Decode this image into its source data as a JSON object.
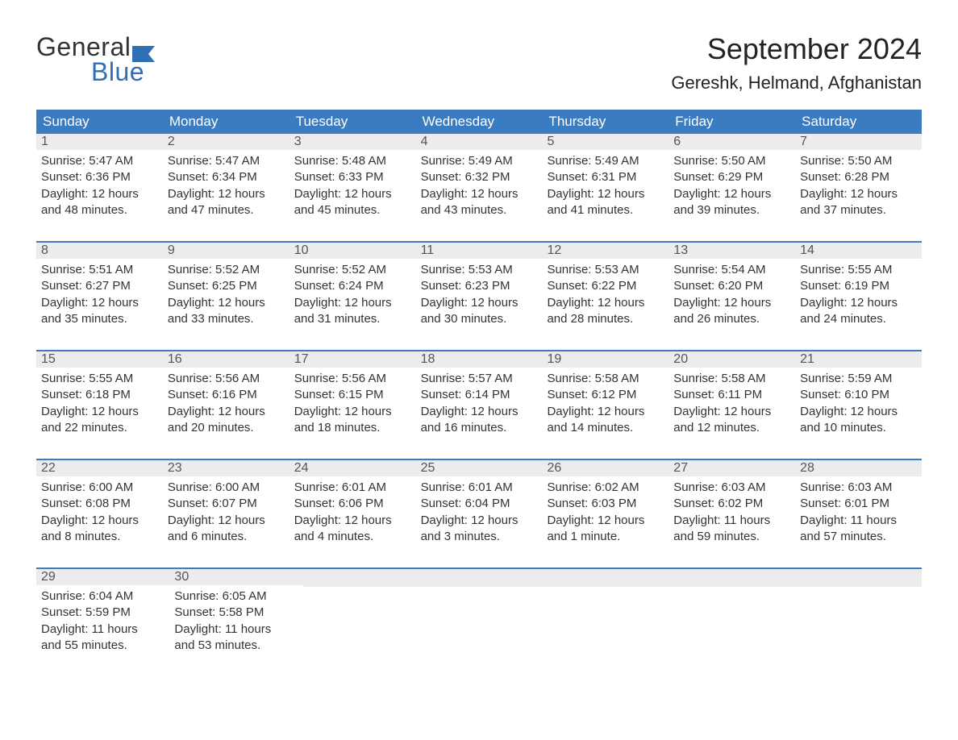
{
  "logo": {
    "top": "General",
    "bottom": "Blue",
    "flag_color": "#2e6fb5",
    "text_color": "#333"
  },
  "title": "September 2024",
  "location": "Gereshk, Helmand, Afghanistan",
  "colors": {
    "header_bg": "#3b7bbf",
    "header_text": "#ffffff",
    "daynum_bg": "#ececec",
    "daynum_text": "#555555",
    "body_text": "#333333",
    "week_border": "#3b7bbf"
  },
  "day_headers": [
    "Sunday",
    "Monday",
    "Tuesday",
    "Wednesday",
    "Thursday",
    "Friday",
    "Saturday"
  ],
  "weeks": [
    [
      {
        "num": "1",
        "sunrise": "Sunrise: 5:47 AM",
        "sunset": "Sunset: 6:36 PM",
        "d1": "Daylight: 12 hours",
        "d2": "and 48 minutes."
      },
      {
        "num": "2",
        "sunrise": "Sunrise: 5:47 AM",
        "sunset": "Sunset: 6:34 PM",
        "d1": "Daylight: 12 hours",
        "d2": "and 47 minutes."
      },
      {
        "num": "3",
        "sunrise": "Sunrise: 5:48 AM",
        "sunset": "Sunset: 6:33 PM",
        "d1": "Daylight: 12 hours",
        "d2": "and 45 minutes."
      },
      {
        "num": "4",
        "sunrise": "Sunrise: 5:49 AM",
        "sunset": "Sunset: 6:32 PM",
        "d1": "Daylight: 12 hours",
        "d2": "and 43 minutes."
      },
      {
        "num": "5",
        "sunrise": "Sunrise: 5:49 AM",
        "sunset": "Sunset: 6:31 PM",
        "d1": "Daylight: 12 hours",
        "d2": "and 41 minutes."
      },
      {
        "num": "6",
        "sunrise": "Sunrise: 5:50 AM",
        "sunset": "Sunset: 6:29 PM",
        "d1": "Daylight: 12 hours",
        "d2": "and 39 minutes."
      },
      {
        "num": "7",
        "sunrise": "Sunrise: 5:50 AM",
        "sunset": "Sunset: 6:28 PM",
        "d1": "Daylight: 12 hours",
        "d2": "and 37 minutes."
      }
    ],
    [
      {
        "num": "8",
        "sunrise": "Sunrise: 5:51 AM",
        "sunset": "Sunset: 6:27 PM",
        "d1": "Daylight: 12 hours",
        "d2": "and 35 minutes."
      },
      {
        "num": "9",
        "sunrise": "Sunrise: 5:52 AM",
        "sunset": "Sunset: 6:25 PM",
        "d1": "Daylight: 12 hours",
        "d2": "and 33 minutes."
      },
      {
        "num": "10",
        "sunrise": "Sunrise: 5:52 AM",
        "sunset": "Sunset: 6:24 PM",
        "d1": "Daylight: 12 hours",
        "d2": "and 31 minutes."
      },
      {
        "num": "11",
        "sunrise": "Sunrise: 5:53 AM",
        "sunset": "Sunset: 6:23 PM",
        "d1": "Daylight: 12 hours",
        "d2": "and 30 minutes."
      },
      {
        "num": "12",
        "sunrise": "Sunrise: 5:53 AM",
        "sunset": "Sunset: 6:22 PM",
        "d1": "Daylight: 12 hours",
        "d2": "and 28 minutes."
      },
      {
        "num": "13",
        "sunrise": "Sunrise: 5:54 AM",
        "sunset": "Sunset: 6:20 PM",
        "d1": "Daylight: 12 hours",
        "d2": "and 26 minutes."
      },
      {
        "num": "14",
        "sunrise": "Sunrise: 5:55 AM",
        "sunset": "Sunset: 6:19 PM",
        "d1": "Daylight: 12 hours",
        "d2": "and 24 minutes."
      }
    ],
    [
      {
        "num": "15",
        "sunrise": "Sunrise: 5:55 AM",
        "sunset": "Sunset: 6:18 PM",
        "d1": "Daylight: 12 hours",
        "d2": "and 22 minutes."
      },
      {
        "num": "16",
        "sunrise": "Sunrise: 5:56 AM",
        "sunset": "Sunset: 6:16 PM",
        "d1": "Daylight: 12 hours",
        "d2": "and 20 minutes."
      },
      {
        "num": "17",
        "sunrise": "Sunrise: 5:56 AM",
        "sunset": "Sunset: 6:15 PM",
        "d1": "Daylight: 12 hours",
        "d2": "and 18 minutes."
      },
      {
        "num": "18",
        "sunrise": "Sunrise: 5:57 AM",
        "sunset": "Sunset: 6:14 PM",
        "d1": "Daylight: 12 hours",
        "d2": "and 16 minutes."
      },
      {
        "num": "19",
        "sunrise": "Sunrise: 5:58 AM",
        "sunset": "Sunset: 6:12 PM",
        "d1": "Daylight: 12 hours",
        "d2": "and 14 minutes."
      },
      {
        "num": "20",
        "sunrise": "Sunrise: 5:58 AM",
        "sunset": "Sunset: 6:11 PM",
        "d1": "Daylight: 12 hours",
        "d2": "and 12 minutes."
      },
      {
        "num": "21",
        "sunrise": "Sunrise: 5:59 AM",
        "sunset": "Sunset: 6:10 PM",
        "d1": "Daylight: 12 hours",
        "d2": "and 10 minutes."
      }
    ],
    [
      {
        "num": "22",
        "sunrise": "Sunrise: 6:00 AM",
        "sunset": "Sunset: 6:08 PM",
        "d1": "Daylight: 12 hours",
        "d2": "and 8 minutes."
      },
      {
        "num": "23",
        "sunrise": "Sunrise: 6:00 AM",
        "sunset": "Sunset: 6:07 PM",
        "d1": "Daylight: 12 hours",
        "d2": "and 6 minutes."
      },
      {
        "num": "24",
        "sunrise": "Sunrise: 6:01 AM",
        "sunset": "Sunset: 6:06 PM",
        "d1": "Daylight: 12 hours",
        "d2": "and 4 minutes."
      },
      {
        "num": "25",
        "sunrise": "Sunrise: 6:01 AM",
        "sunset": "Sunset: 6:04 PM",
        "d1": "Daylight: 12 hours",
        "d2": "and 3 minutes."
      },
      {
        "num": "26",
        "sunrise": "Sunrise: 6:02 AM",
        "sunset": "Sunset: 6:03 PM",
        "d1": "Daylight: 12 hours",
        "d2": "and 1 minute."
      },
      {
        "num": "27",
        "sunrise": "Sunrise: 6:03 AM",
        "sunset": "Sunset: 6:02 PM",
        "d1": "Daylight: 11 hours",
        "d2": "and 59 minutes."
      },
      {
        "num": "28",
        "sunrise": "Sunrise: 6:03 AM",
        "sunset": "Sunset: 6:01 PM",
        "d1": "Daylight: 11 hours",
        "d2": "and 57 minutes."
      }
    ],
    [
      {
        "num": "29",
        "sunrise": "Sunrise: 6:04 AM",
        "sunset": "Sunset: 5:59 PM",
        "d1": "Daylight: 11 hours",
        "d2": "and 55 minutes."
      },
      {
        "num": "30",
        "sunrise": "Sunrise: 6:05 AM",
        "sunset": "Sunset: 5:58 PM",
        "d1": "Daylight: 11 hours",
        "d2": "and 53 minutes."
      },
      null,
      null,
      null,
      null,
      null
    ]
  ]
}
